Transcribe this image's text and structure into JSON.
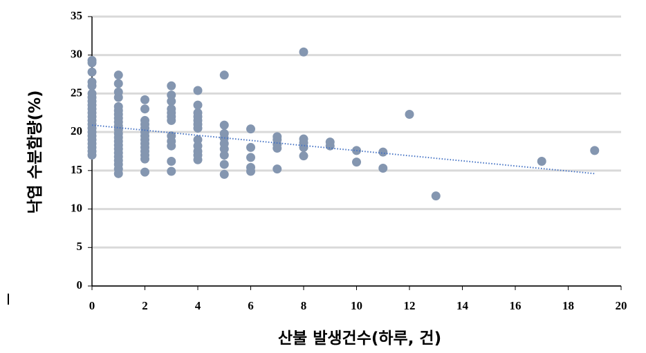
{
  "chart_data": {
    "type": "scatter",
    "x_label": "산불 발생건수(하루, 건)",
    "y_label": "낙엽  수분함량(%)",
    "series": [
      {
        "color": "#8496b0",
        "x": [
          0,
          0,
          0,
          0,
          0,
          0,
          0,
          0,
          0,
          0,
          0,
          0,
          0,
          0,
          0,
          0,
          0,
          0,
          0,
          0,
          0,
          0,
          1,
          1,
          1,
          1,
          1,
          1,
          1,
          1,
          1,
          1,
          1,
          1,
          1,
          1,
          1,
          1,
          1,
          1,
          1,
          1,
          1,
          1,
          2,
          2,
          2,
          2,
          2,
          2,
          2,
          2,
          2,
          2,
          2,
          2,
          2,
          2,
          3,
          3,
          3,
          3,
          3,
          3,
          3,
          3,
          3,
          3,
          3,
          3,
          4,
          4,
          4,
          4,
          4,
          4,
          4,
          4,
          4,
          4,
          4,
          4,
          5,
          5,
          5,
          5,
          5,
          5,
          5,
          5,
          5,
          6,
          6,
          6,
          6,
          6,
          7,
          7,
          7,
          7,
          7,
          8,
          8,
          8,
          8,
          8,
          9,
          9,
          10,
          10,
          11,
          11,
          12,
          13,
          17,
          19
        ],
        "values": [
          17,
          17.5,
          18,
          18.5,
          19,
          19.5,
          20,
          20.5,
          21,
          21.5,
          22,
          22.5,
          23,
          23.5,
          24,
          24.5,
          25,
          26,
          26.5,
          27.8,
          29,
          29.3,
          14.6,
          15.2,
          15.8,
          16.3,
          16.8,
          17.3,
          17.8,
          18.3,
          18.8,
          19.3,
          19.8,
          20.3,
          20.8,
          21.3,
          21.8,
          22.3,
          22.8,
          23.3,
          24.5,
          25.2,
          26.3,
          27.4,
          14.8,
          16.5,
          17,
          17.5,
          18,
          18.5,
          19,
          19.5,
          20,
          20.5,
          21,
          21.5,
          23,
          24.2,
          14.9,
          16.2,
          18.2,
          18.8,
          19.5,
          21.5,
          22,
          22.5,
          23,
          24,
          24.8,
          26,
          16.4,
          17,
          17.5,
          18.2,
          19,
          20.5,
          21,
          21.5,
          22,
          22.5,
          23.5,
          25.4,
          14.5,
          15.8,
          17,
          17.8,
          18.5,
          19.2,
          19.8,
          20.9,
          27.4,
          14.9,
          15.4,
          16.7,
          18,
          20.4,
          15.2,
          17.9,
          18.4,
          19,
          19.4,
          16.9,
          18,
          18.6,
          19.1,
          30.4,
          18.2,
          18.7,
          16.1,
          17.6,
          15.3,
          17.4,
          22.3,
          11.7,
          16.2,
          17.6
        ]
      }
    ],
    "trendline": {
      "color": "#4472c4",
      "x": [
        0,
        19
      ],
      "values": [
        20.9,
        14.6
      ]
    },
    "xlim": [
      0,
      20
    ],
    "xticks": [
      0,
      2,
      4,
      6,
      8,
      10,
      12,
      14,
      16,
      18,
      20
    ],
    "ylim": [
      0,
      35
    ],
    "yticks": [
      0,
      5,
      10,
      15,
      20,
      25,
      30,
      35
    ],
    "grid": true
  }
}
